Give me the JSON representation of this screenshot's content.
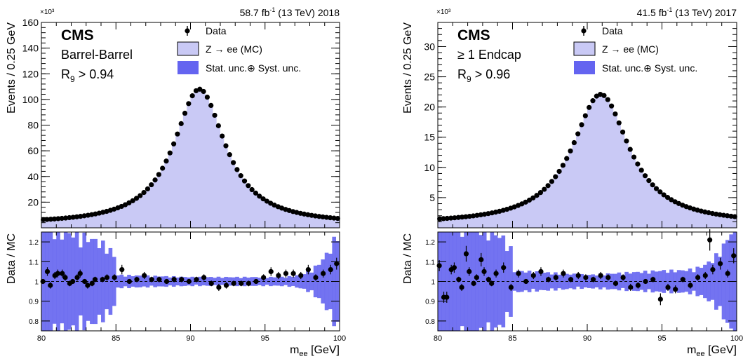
{
  "x_axis_label": "m",
  "x_axis_label_sub": "ee",
  "x_axis_label_unit": " [GeV]",
  "ratio_axis_label": "Data / MC",
  "exponent_label": "×10³",
  "legend": {
    "data": "Data",
    "mc": "Z → ee (MC)",
    "unc": "Stat. unc.⊕ Syst. unc."
  },
  "colors": {
    "mc_fill": "#c9c9f5",
    "mc_outline": "#000000",
    "unc_band": "#6464f0",
    "data": "#000000"
  },
  "chart_data": [
    {
      "type": "histogram",
      "experiment": "CMS",
      "category": "Barrel-Barrel",
      "r9_label": "R",
      "r9_sub": "9",
      "r9_cut": " > 0.94",
      "lumi_text": "58.7 fb",
      "lumi_sup": "-1",
      "lumi_rest": " (13 TeV) 2018",
      "xlabel": "m_ee [GeV]",
      "ylabel": "Events / 0.25 GeV",
      "xlim": [
        80,
        100
      ],
      "ylim": [
        0,
        160
      ],
      "y_scale": 1000,
      "yticks": [
        20,
        40,
        60,
        80,
        100,
        120,
        140,
        160
      ],
      "xticks": [
        80,
        85,
        90,
        95,
        100
      ],
      "ratio_ylim": [
        0.75,
        1.25
      ],
      "ratio_yticks": [
        0.8,
        0.9,
        1,
        1.1,
        1.2
      ],
      "peak": {
        "x0": 90.6,
        "amplitude": 104,
        "width": 2.0,
        "background": 4
      },
      "ratio_points": [
        [
          80.1,
          1.0
        ],
        [
          80.4,
          1.05
        ],
        [
          80.6,
          0.98
        ],
        [
          80.9,
          1.03
        ],
        [
          81.1,
          1.04
        ],
        [
          81.4,
          1.04
        ],
        [
          81.6,
          1.02
        ],
        [
          81.9,
          0.99
        ],
        [
          82.1,
          1.0
        ],
        [
          82.4,
          1.02
        ],
        [
          82.6,
          1.04
        ],
        [
          82.9,
          1.0
        ],
        [
          83.1,
          0.98
        ],
        [
          83.4,
          0.99
        ],
        [
          83.6,
          1.01
        ],
        [
          84.1,
          1.01
        ],
        [
          84.4,
          1.02
        ],
        [
          84.9,
          1.02
        ],
        [
          85.4,
          1.06
        ],
        [
          85.9,
          1.0
        ],
        [
          86.4,
          1.01
        ],
        [
          86.9,
          1.03
        ],
        [
          87.4,
          1.01
        ],
        [
          87.9,
          1.01
        ],
        [
          88.4,
          1.0
        ],
        [
          88.9,
          1.01
        ],
        [
          89.4,
          1.01
        ],
        [
          89.9,
          1.0
        ],
        [
          90.4,
          1.01
        ],
        [
          90.9,
          1.02
        ],
        [
          91.4,
          0.99
        ],
        [
          91.9,
          0.97
        ],
        [
          92.4,
          0.98
        ],
        [
          92.9,
          0.99
        ],
        [
          93.4,
          0.99
        ],
        [
          93.9,
          0.99
        ],
        [
          94.4,
          1.0
        ],
        [
          94.9,
          1.02
        ],
        [
          95.4,
          1.05
        ],
        [
          95.9,
          1.03
        ],
        [
          96.4,
          1.04
        ],
        [
          96.9,
          1.04
        ],
        [
          97.4,
          1.03
        ],
        [
          97.9,
          1.06
        ],
        [
          98.4,
          1.02
        ],
        [
          98.9,
          1.04
        ],
        [
          99.4,
          1.06
        ],
        [
          99.8,
          1.09
        ]
      ],
      "band_halfwidth_edges": [
        0.25,
        0.03,
        0.02,
        0.02,
        0.25
      ]
    },
    {
      "type": "histogram",
      "experiment": "CMS",
      "category": "≥ 1 Endcap",
      "r9_label": "R",
      "r9_sub": "9",
      "r9_cut": " > 0.96",
      "lumi_text": "41.5 fb",
      "lumi_sup": "-1",
      "lumi_rest": " (13 TeV) 2017",
      "xlabel": "m_ee [GeV]",
      "ylabel": "Events / 0.25 GeV",
      "xlim": [
        80,
        100
      ],
      "ylim": [
        0,
        34
      ],
      "y_scale": 1000,
      "yticks": [
        5,
        10,
        15,
        20,
        25,
        30
      ],
      "xticks": [
        80,
        85,
        90,
        95,
        100
      ],
      "ratio_ylim": [
        0.75,
        1.25
      ],
      "ratio_yticks": [
        0.8,
        0.9,
        1,
        1.1,
        1.2
      ],
      "peak": {
        "x0": 90.9,
        "amplitude": 21.2,
        "width": 2.2,
        "background": 0.9
      },
      "ratio_points": [
        [
          80.1,
          1.08
        ],
        [
          80.4,
          0.92
        ],
        [
          80.6,
          0.92
        ],
        [
          80.9,
          1.06
        ],
        [
          81.1,
          1.07
        ],
        [
          81.4,
          1.01
        ],
        [
          81.6,
          0.97
        ],
        [
          81.9,
          1.14
        ],
        [
          82.1,
          1.05
        ],
        [
          82.4,
          0.99
        ],
        [
          82.6,
          1.02
        ],
        [
          82.9,
          1.11
        ],
        [
          83.1,
          1.05
        ],
        [
          83.4,
          1.01
        ],
        [
          83.6,
          0.99
        ],
        [
          83.9,
          1.04
        ],
        [
          84.4,
          1.07
        ],
        [
          84.9,
          0.97
        ],
        [
          85.4,
          1.04
        ],
        [
          85.9,
          1.0
        ],
        [
          86.4,
          1.03
        ],
        [
          86.9,
          1.05
        ],
        [
          87.4,
          1.01
        ],
        [
          87.9,
          1.02
        ],
        [
          88.4,
          1.04
        ],
        [
          88.9,
          1.01
        ],
        [
          89.4,
          1.03
        ],
        [
          89.9,
          1.02
        ],
        [
          90.4,
          1.01
        ],
        [
          90.9,
          1.03
        ],
        [
          91.4,
          1.02
        ],
        [
          91.9,
          0.99
        ],
        [
          92.4,
          1.02
        ],
        [
          92.9,
          0.97
        ],
        [
          93.4,
          0.98
        ],
        [
          93.9,
          1.0
        ],
        [
          94.4,
          1.01
        ],
        [
          94.9,
          0.91
        ],
        [
          95.4,
          0.97
        ],
        [
          95.9,
          0.96
        ],
        [
          96.4,
          1.01
        ],
        [
          96.9,
          0.98
        ],
        [
          97.4,
          1.02
        ],
        [
          97.9,
          1.03
        ],
        [
          98.2,
          1.21
        ],
        [
          98.4,
          1.06
        ],
        [
          98.9,
          1.09
        ],
        [
          99.4,
          1.04
        ],
        [
          99.8,
          1.13
        ]
      ],
      "band_halfwidth_edges": [
        0.3,
        0.05,
        0.03,
        0.05,
        0.3
      ]
    }
  ]
}
